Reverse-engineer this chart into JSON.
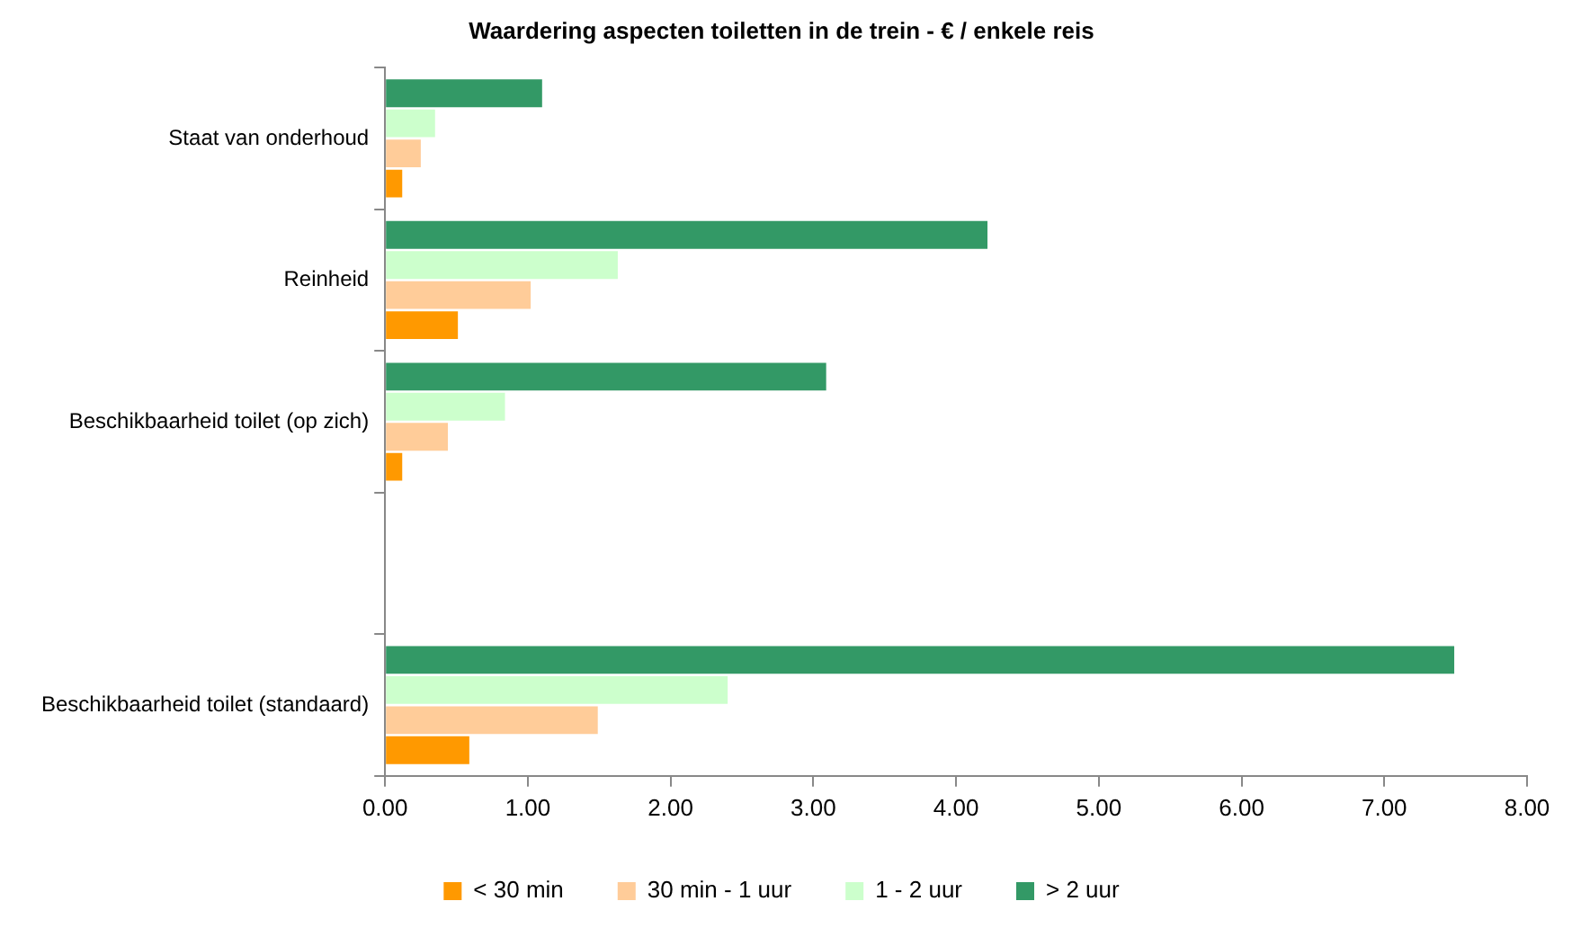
{
  "chart_data": {
    "type": "bar",
    "orientation": "horizontal",
    "title": "Waardering aspecten toiletten in de trein - € / enkele reis",
    "categories": [
      "Staat van onderhoud",
      "Reinheid",
      "Beschikbaarheid toilet (op zich)",
      null,
      "Beschikbaarheid toilet (standaard)"
    ],
    "series": [
      {
        "name": "< 30 min",
        "color": "#ff9900",
        "values": [
          0.12,
          0.51,
          0.12,
          null,
          0.59
        ]
      },
      {
        "name": "30 min - 1 uur",
        "color": "#ffcc99",
        "values": [
          0.25,
          1.02,
          0.44,
          null,
          1.49
        ]
      },
      {
        "name": "1 - 2 uur",
        "color": "#ccffcc",
        "values": [
          0.35,
          1.63,
          0.84,
          null,
          2.4
        ]
      },
      {
        "name": "> 2 uur",
        "color": "#339966",
        "values": [
          1.1,
          4.22,
          3.09,
          null,
          7.49
        ]
      }
    ],
    "xlim": [
      0,
      8
    ],
    "xticks": [
      {
        "value": 0,
        "label": "0.00"
      },
      {
        "value": 1,
        "label": "1.00"
      },
      {
        "value": 2,
        "label": "2.00"
      },
      {
        "value": 3,
        "label": "3.00"
      },
      {
        "value": 4,
        "label": "4.00"
      },
      {
        "value": 5,
        "label": "5.00"
      },
      {
        "value": 6,
        "label": "6.00"
      },
      {
        "value": 7,
        "label": "7.00"
      },
      {
        "value": 8,
        "label": "8.00"
      }
    ],
    "grid": false,
    "legend": "bottom"
  }
}
